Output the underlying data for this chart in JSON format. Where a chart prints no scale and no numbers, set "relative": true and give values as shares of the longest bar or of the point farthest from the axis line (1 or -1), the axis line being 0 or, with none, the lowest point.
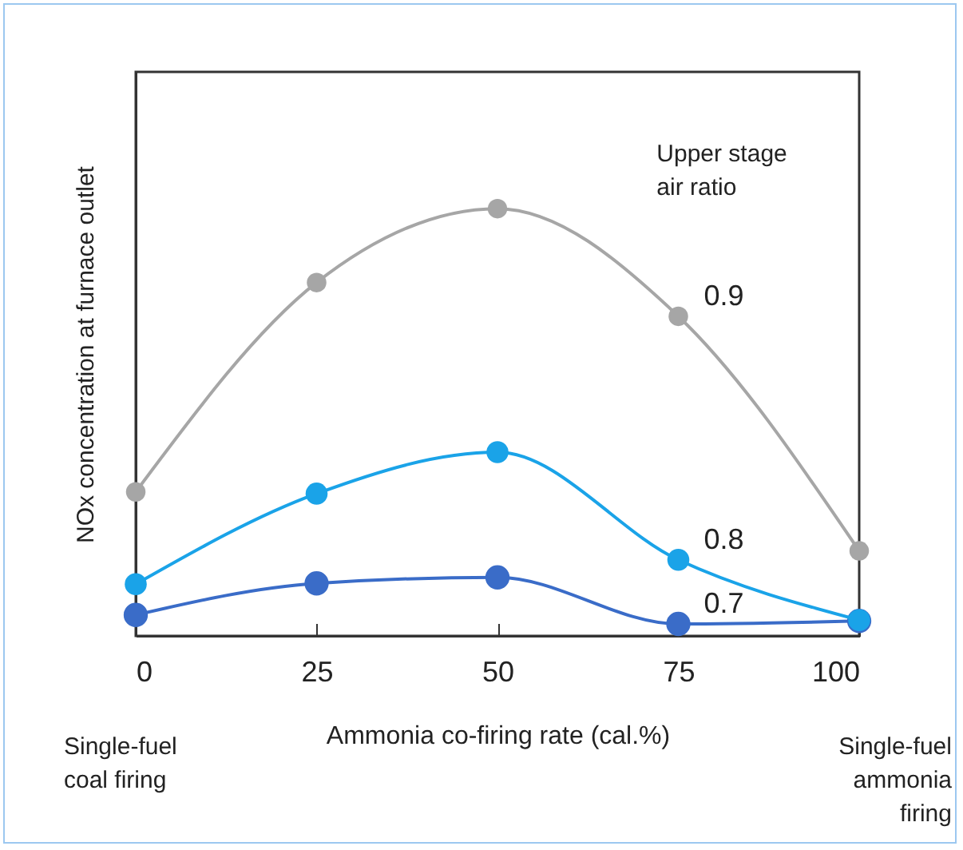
{
  "chart_data": {
    "type": "line",
    "relative": true,
    "xlabel": "Ammonia co-firing rate (cal.%)",
    "ylabel": "NOx concentration at furnace outlet",
    "x": [
      0,
      25,
      50,
      75,
      100
    ],
    "xlim": [
      0,
      100
    ],
    "xticks": [
      0,
      25,
      50,
      75,
      100
    ],
    "marker": "circle",
    "series": [
      {
        "name": "0.9",
        "color": "#a6a6a6",
        "values": [
          0.337,
          0.827,
          1,
          0.748,
          0.199
        ]
      },
      {
        "name": "0.8",
        "color": "#1aa3e8",
        "values": [
          0.121,
          0.333,
          0.43,
          0.178,
          0.037
        ]
      },
      {
        "name": "0.7",
        "color": "#3a6cc8",
        "values": [
          0.049,
          0.123,
          0.137,
          0.028,
          0.035
        ]
      }
    ],
    "annotations": [
      "Upper stage air ratio",
      "Single-fuel coal firing",
      "Single-fuel ammonia firing"
    ]
  }
}
